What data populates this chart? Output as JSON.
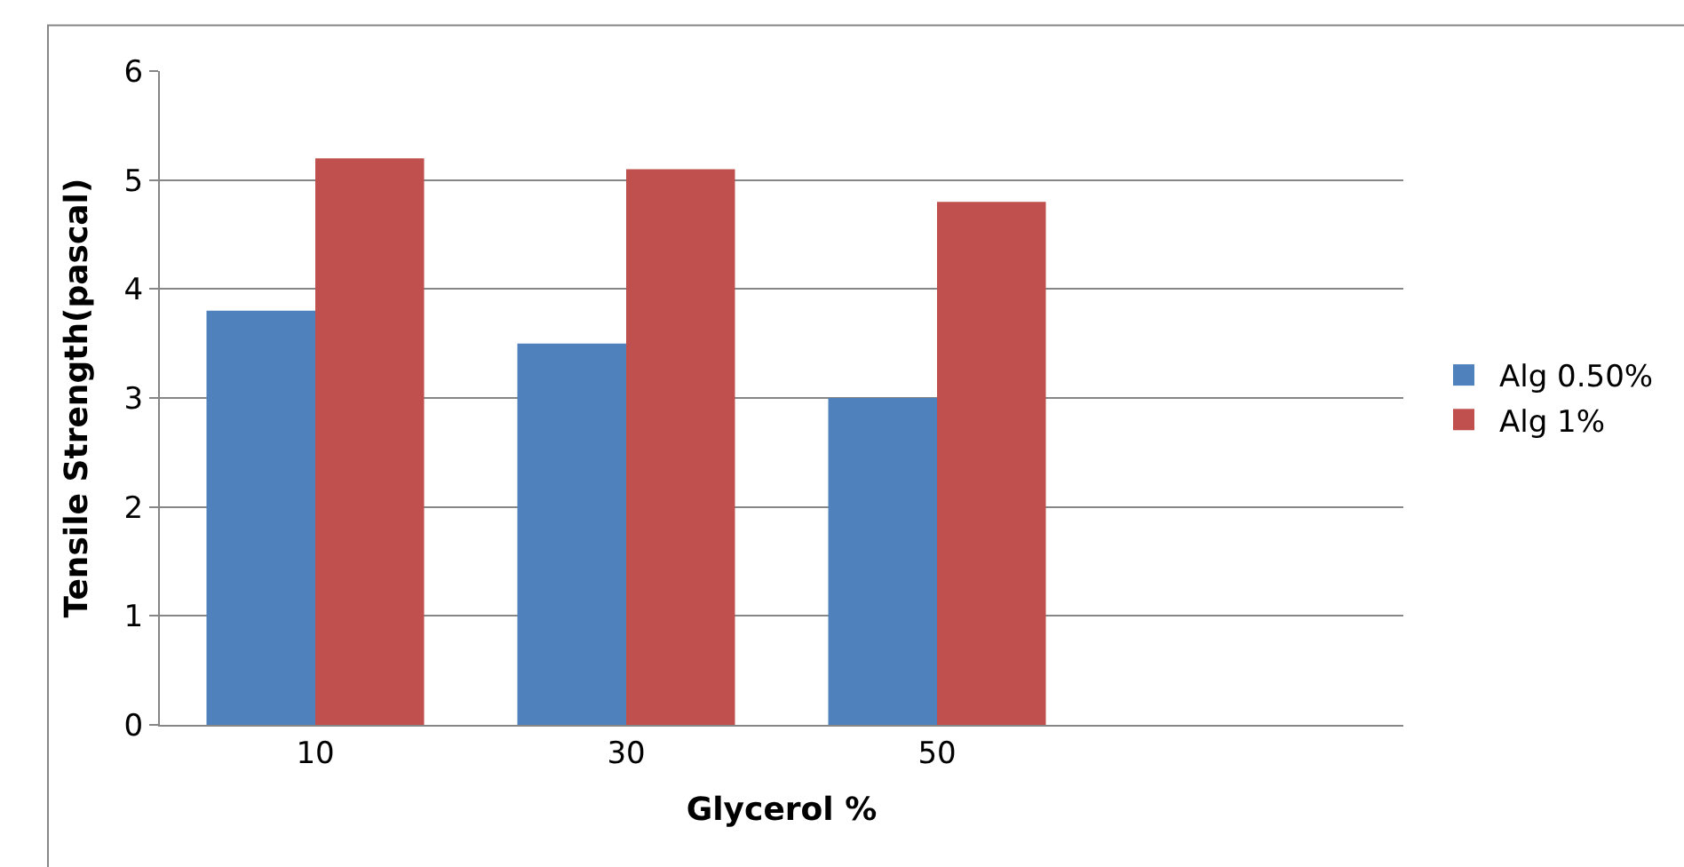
{
  "chart_data": {
    "type": "bar",
    "xlabel": "Glycerol %",
    "ylabel": "Tensile Strength(pascal)",
    "categories": [
      "10",
      "30",
      "50",
      null
    ],
    "series": [
      {
        "name": "Alg 0.50%",
        "color": "#4f81bd",
        "values": [
          3.8,
          3.5,
          3.0,
          null
        ]
      },
      {
        "name": "Alg 1%",
        "color": "#c0504d",
        "values": [
          5.2,
          5.1,
          4.8,
          null
        ]
      }
    ],
    "ylim": [
      0,
      6
    ],
    "yticks": [
      0,
      1,
      2,
      3,
      4,
      5,
      6
    ],
    "grid": "y",
    "legend": "right"
  }
}
